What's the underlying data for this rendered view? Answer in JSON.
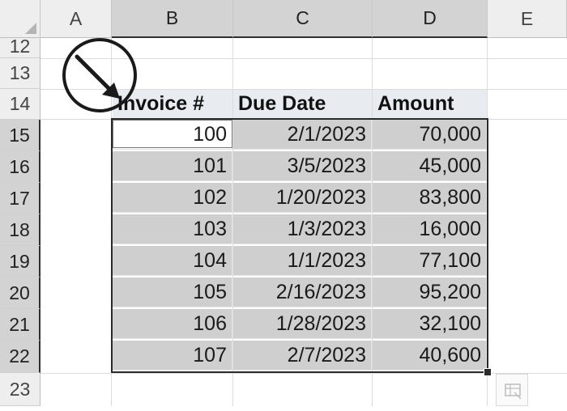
{
  "columns": [
    {
      "id": "col-a",
      "label": "A"
    },
    {
      "id": "col-b",
      "label": "B"
    },
    {
      "id": "col-c",
      "label": "C"
    },
    {
      "id": "col-d",
      "label": "D"
    },
    {
      "id": "col-e",
      "label": "E"
    }
  ],
  "rows": [
    "12",
    "13",
    "14",
    "15",
    "16",
    "17",
    "18",
    "19",
    "20",
    "21",
    "22",
    "23"
  ],
  "table": {
    "headers": [
      "Invoice #",
      "Due Date",
      "Amount"
    ],
    "rows": [
      [
        "100",
        "2/1/2023",
        "70,000"
      ],
      [
        "101",
        "3/5/2023",
        "45,000"
      ],
      [
        "102",
        "1/20/2023",
        "83,800"
      ],
      [
        "103",
        "1/3/2023",
        "16,000"
      ],
      [
        "104",
        "1/1/2023",
        "77,100"
      ],
      [
        "105",
        "2/16/2023",
        "95,200"
      ],
      [
        "106",
        "1/28/2023",
        "32,100"
      ],
      [
        "107",
        "2/7/2023",
        "40,600"
      ]
    ]
  },
  "selection": {
    "selected_columns": [
      "B",
      "C",
      "D"
    ],
    "selected_rows": [
      "15",
      "16",
      "17",
      "18",
      "19",
      "20",
      "21",
      "22"
    ],
    "active_cell": "B15"
  },
  "annotation": {
    "icon": "circled-arrow-icon",
    "color": "#1a1a1a"
  },
  "colors": {
    "selection_fill": "#cfcfcf",
    "header_fill": "#eeeeee",
    "selected_header_fill": "#d3d3d3"
  }
}
